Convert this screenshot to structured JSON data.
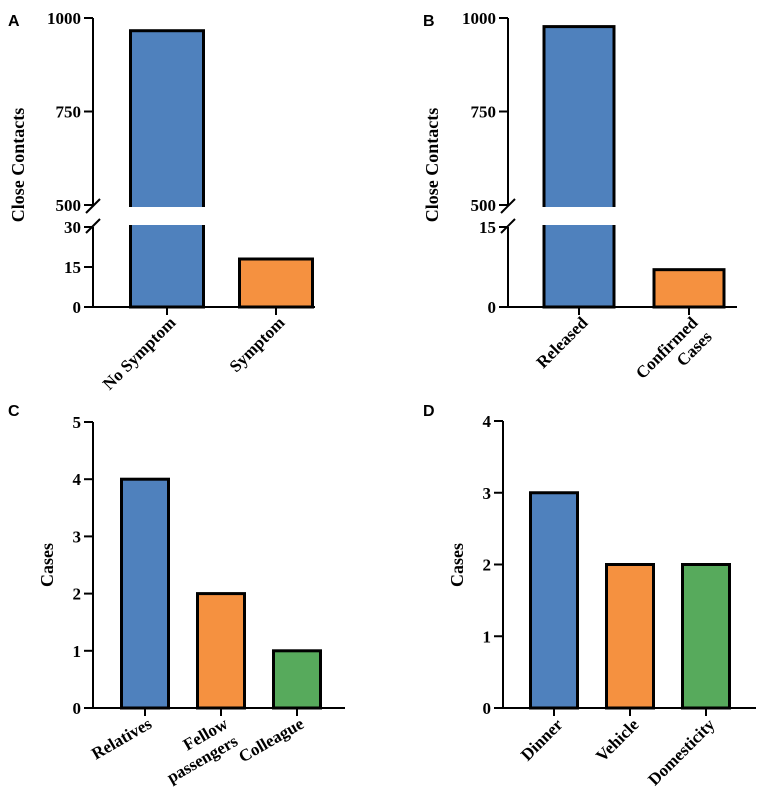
{
  "chart_data": [
    {
      "panel": "A",
      "type": "bar",
      "ylabel": "Close Contacts",
      "categories": [
        "No Symptom",
        "Symptom"
      ],
      "values": [
        966,
        18
      ],
      "colors": [
        "#4f81bd",
        "#f59140"
      ],
      "broken_axis": true,
      "lower_segment": {
        "range": [
          0,
          30
        ],
        "ticks": [
          0,
          15,
          30
        ]
      },
      "upper_segment": {
        "range": [
          500,
          1000
        ],
        "ticks": [
          500,
          750,
          1000
        ]
      },
      "tick_labels": [
        "0",
        "15",
        "30",
        "500",
        "750",
        "1000"
      ]
    },
    {
      "panel": "B",
      "type": "bar",
      "ylabel": "Close Contacts",
      "categories": [
        "Released",
        "Confirmed Cases"
      ],
      "category_lines": [
        [
          "Released"
        ],
        [
          "Confirmed",
          "Cases"
        ]
      ],
      "values": [
        977,
        7
      ],
      "colors": [
        "#4f81bd",
        "#f59140"
      ],
      "broken_axis": true,
      "lower_segment": {
        "range": [
          0,
          15
        ],
        "ticks": [
          0,
          15
        ]
      },
      "upper_segment": {
        "range": [
          500,
          1000
        ],
        "ticks": [
          500,
          750,
          1000
        ]
      },
      "tick_labels": [
        "0",
        "15",
        "500",
        "750",
        "1000"
      ]
    },
    {
      "panel": "C",
      "type": "bar",
      "ylabel": "Cases",
      "categories": [
        "Relatives",
        "Fellow passengers",
        "Colleague"
      ],
      "category_lines": [
        [
          "Relatives"
        ],
        [
          "Fellow",
          "passengers"
        ],
        [
          "Colleague"
        ]
      ],
      "values": [
        4,
        2,
        1
      ],
      "colors": [
        "#4f81bd",
        "#f59140",
        "#57aa5c"
      ],
      "ylim": [
        0,
        5
      ],
      "ticks": [
        0,
        1,
        2,
        3,
        4,
        5
      ],
      "tick_labels": [
        "0",
        "1",
        "2",
        "3",
        "4",
        "5"
      ]
    },
    {
      "panel": "D",
      "type": "bar",
      "ylabel": "Cases",
      "categories": [
        "Dinner",
        "Vehicle",
        "Domesticity"
      ],
      "values": [
        3,
        2,
        2
      ],
      "colors": [
        "#4f81bd",
        "#f59140",
        "#57aa5c"
      ],
      "ylim": [
        0,
        4
      ],
      "ticks": [
        0,
        1,
        2,
        3,
        4
      ],
      "tick_labels": [
        "0",
        "1",
        "2",
        "3",
        "4"
      ]
    }
  ]
}
